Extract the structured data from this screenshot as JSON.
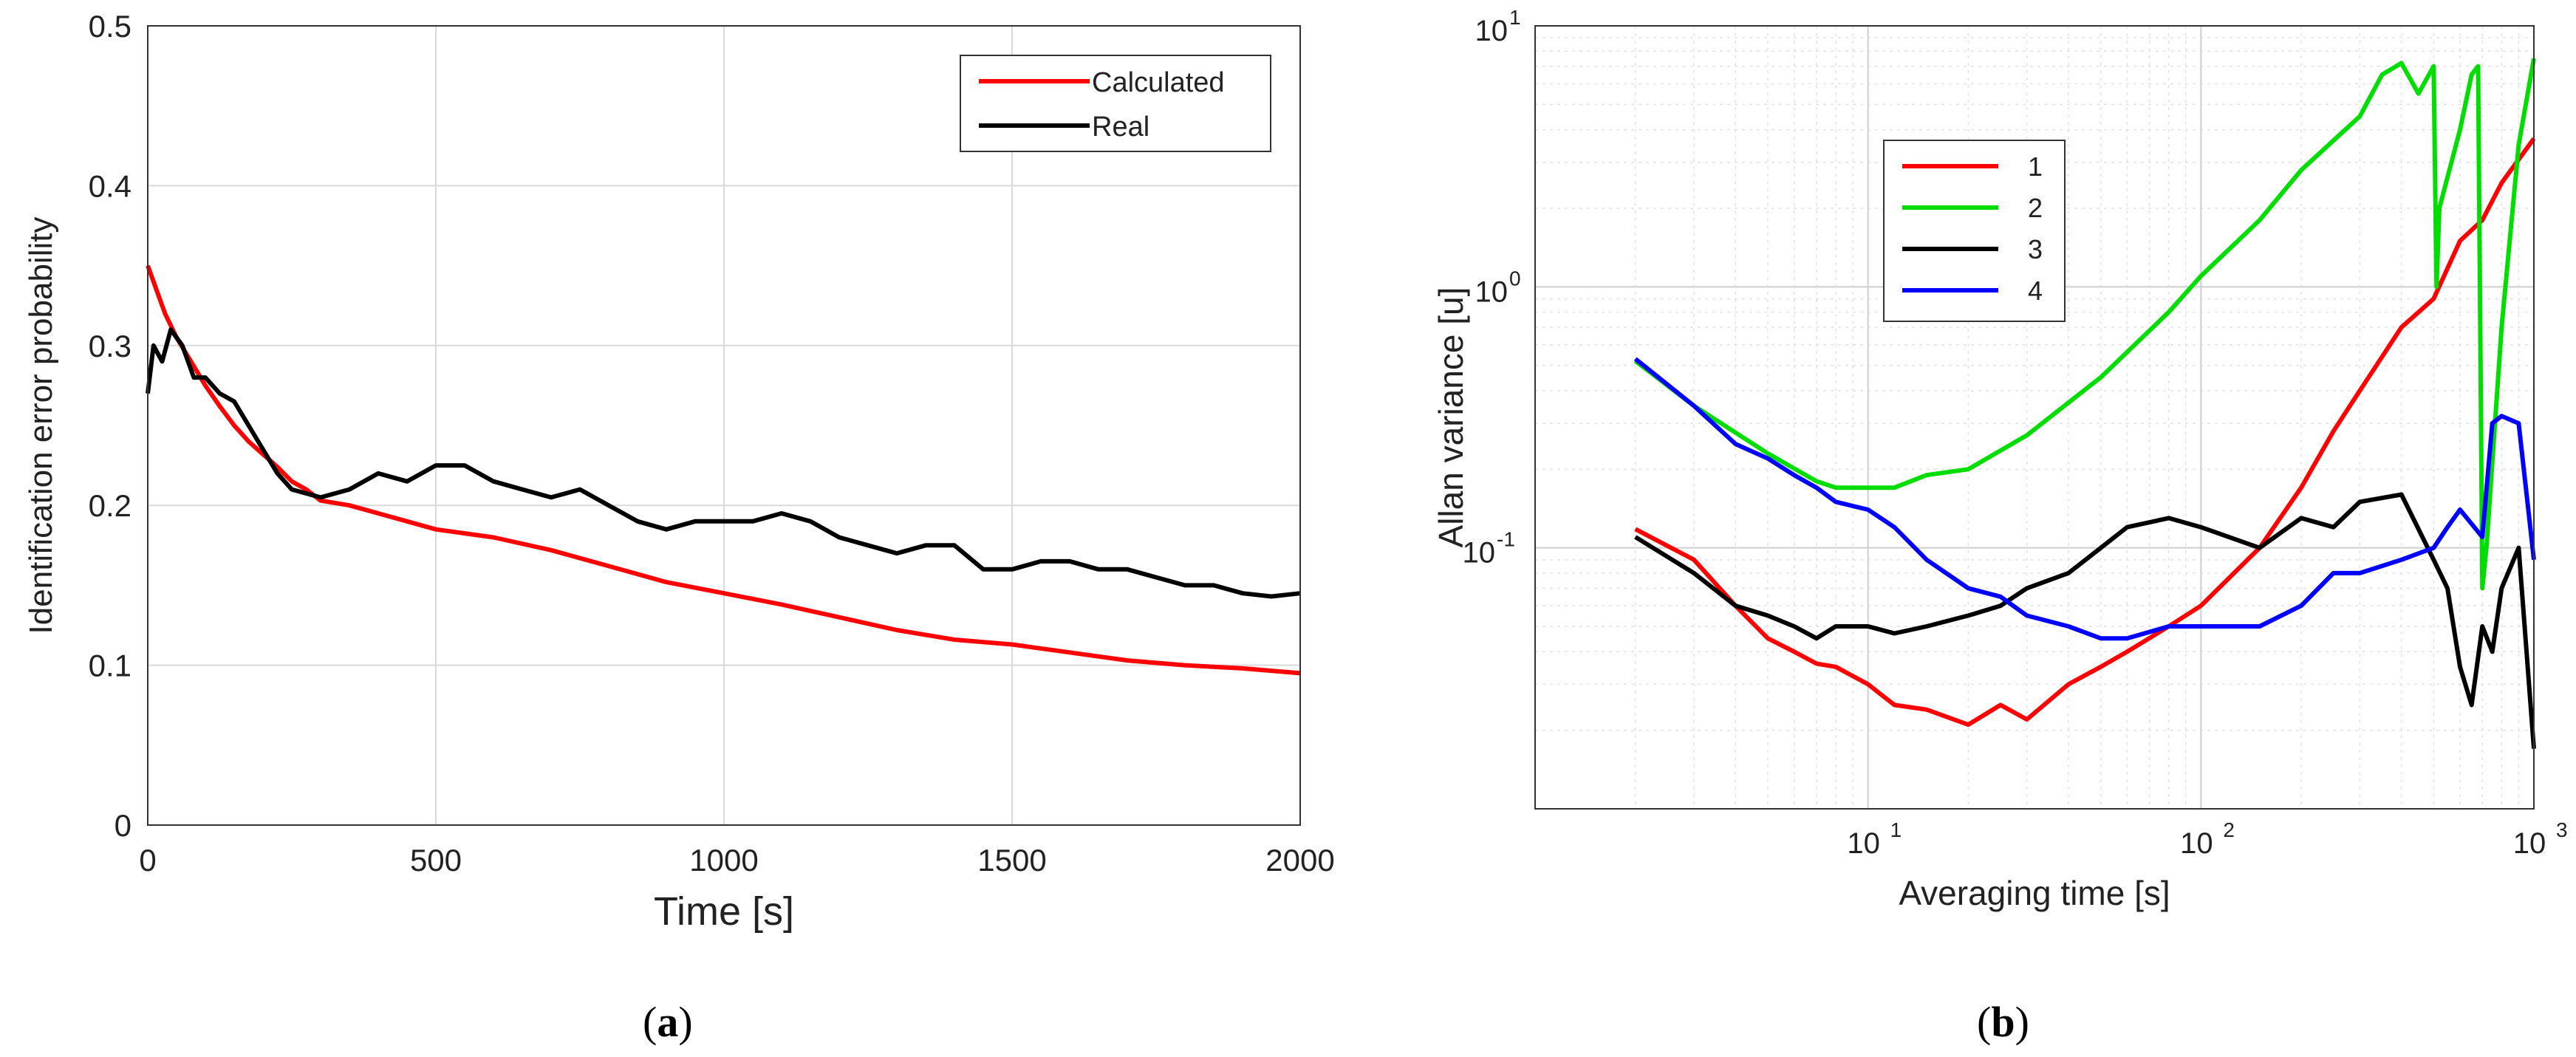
{
  "chart_data": [
    {
      "type": "line",
      "panel": "a",
      "xlabel": "Time [s]",
      "ylabel": "Identification error probability",
      "xlim": [
        0,
        2000
      ],
      "ylim": [
        0,
        0.5
      ],
      "x_ticks": [
        0,
        500,
        1000,
        1500,
        2000
      ],
      "x_tick_labels": [
        "0",
        "500",
        "1000",
        "1500",
        "2000"
      ],
      "y_ticks": [
        0,
        0.1,
        0.2,
        0.3,
        0.4,
        0.5
      ],
      "y_tick_labels": [
        "0",
        "0.1",
        "0.2",
        "0.3",
        "0.4",
        "0.5"
      ],
      "grid": true,
      "legend_position": "top-right",
      "series": [
        {
          "name": "Calculated",
          "color": "#ff0000",
          "x": [
            0,
            5,
            15,
            30,
            50,
            75,
            100,
            125,
            150,
            175,
            200,
            225,
            250,
            275,
            300,
            350,
            400,
            450,
            500,
            600,
            700,
            800,
            900,
            1000,
            1100,
            1200,
            1300,
            1400,
            1500,
            1600,
            1700,
            1800,
            1900,
            2000
          ],
          "y": [
            0.35,
            0.345,
            0.335,
            0.32,
            0.305,
            0.29,
            0.275,
            0.262,
            0.25,
            0.24,
            0.232,
            0.224,
            0.215,
            0.21,
            0.203,
            0.2,
            0.195,
            0.19,
            0.185,
            0.18,
            0.172,
            0.162,
            0.152,
            0.145,
            0.138,
            0.13,
            0.122,
            0.116,
            0.113,
            0.108,
            0.103,
            0.1,
            0.098,
            0.095
          ]
        },
        {
          "name": "Real",
          "color": "#000000",
          "x": [
            0,
            10,
            25,
            40,
            60,
            80,
            100,
            125,
            150,
            175,
            200,
            225,
            250,
            300,
            350,
            400,
            450,
            500,
            550,
            600,
            650,
            700,
            750,
            800,
            850,
            900,
            950,
            1000,
            1050,
            1100,
            1150,
            1200,
            1250,
            1300,
            1350,
            1400,
            1450,
            1500,
            1550,
            1600,
            1650,
            1700,
            1750,
            1800,
            1850,
            1900,
            1950,
            2000
          ],
          "y": [
            0.27,
            0.3,
            0.29,
            0.31,
            0.3,
            0.28,
            0.28,
            0.27,
            0.265,
            0.25,
            0.235,
            0.22,
            0.21,
            0.205,
            0.21,
            0.22,
            0.215,
            0.225,
            0.225,
            0.215,
            0.21,
            0.205,
            0.21,
            0.2,
            0.19,
            0.185,
            0.19,
            0.19,
            0.19,
            0.195,
            0.19,
            0.18,
            0.175,
            0.17,
            0.175,
            0.175,
            0.16,
            0.16,
            0.165,
            0.165,
            0.16,
            0.16,
            0.155,
            0.15,
            0.15,
            0.145,
            0.143,
            0.145
          ]
        }
      ]
    },
    {
      "type": "line",
      "panel": "b",
      "xlabel": "Averaging time [s]",
      "ylabel": "Allan variance [u]",
      "xscale": "log",
      "yscale": "log",
      "xlim": [
        1,
        1000
      ],
      "ylim": [
        0.01,
        10
      ],
      "x_ticks": [
        10,
        100,
        1000
      ],
      "x_tick_labels": [
        {
          "base": "10",
          "exp": "1"
        },
        {
          "base": "10",
          "exp": "2"
        },
        {
          "base": "10",
          "exp": "3"
        }
      ],
      "y_ticks": [
        0.1,
        1,
        10
      ],
      "y_tick_labels": [
        {
          "base": "10",
          "exp": "-1"
        },
        {
          "base": "10",
          "exp": "0"
        },
        {
          "base": "10",
          "exp": "1"
        }
      ],
      "grid": true,
      "legend_position": "top-left",
      "series": [
        {
          "name": "1",
          "color": "#ff0000",
          "x": [
            2,
            3,
            4,
            5,
            6,
            7,
            8,
            10,
            12,
            15,
            20,
            25,
            30,
            40,
            50,
            60,
            80,
            100,
            150,
            200,
            250,
            300,
            400,
            500,
            600,
            700,
            800,
            1000
          ],
          "y": [
            0.118,
            0.09,
            0.06,
            0.045,
            0.04,
            0.036,
            0.035,
            0.03,
            0.025,
            0.024,
            0.021,
            0.025,
            0.022,
            0.03,
            0.035,
            0.04,
            0.05,
            0.06,
            0.1,
            0.17,
            0.28,
            0.4,
            0.7,
            0.9,
            1.5,
            1.8,
            2.5,
            3.7
          ]
        },
        {
          "name": "2",
          "color": "#00dd00",
          "x": [
            2,
            3,
            5,
            7,
            8,
            10,
            12,
            15,
            20,
            30,
            50,
            80,
            100,
            150,
            200,
            300,
            350,
            400,
            450,
            500,
            510,
            520,
            600,
            650,
            680,
            700,
            720,
            800,
            900,
            1000
          ],
          "y": [
            0.52,
            0.35,
            0.23,
            0.18,
            0.17,
            0.17,
            0.17,
            0.19,
            0.2,
            0.27,
            0.45,
            0.8,
            1.1,
            1.8,
            2.8,
            4.5,
            6.5,
            7.2,
            5.5,
            7.0,
            1.0,
            2.0,
            4.0,
            6.5,
            7.0,
            0.07,
            0.1,
            0.7,
            3.5,
            7.5
          ]
        },
        {
          "name": "3",
          "color": "#000000",
          "x": [
            2,
            3,
            4,
            5,
            6,
            7,
            8,
            10,
            12,
            15,
            20,
            25,
            30,
            40,
            50,
            60,
            80,
            100,
            150,
            200,
            250,
            300,
            400,
            500,
            550,
            600,
            650,
            700,
            750,
            800,
            900,
            1000
          ],
          "y": [
            0.11,
            0.08,
            0.06,
            0.055,
            0.05,
            0.045,
            0.05,
            0.05,
            0.047,
            0.05,
            0.055,
            0.06,
            0.07,
            0.08,
            0.1,
            0.12,
            0.13,
            0.12,
            0.1,
            0.13,
            0.12,
            0.15,
            0.16,
            0.09,
            0.07,
            0.035,
            0.025,
            0.05,
            0.04,
            0.07,
            0.1,
            0.017
          ]
        },
        {
          "name": "4",
          "color": "#0000ff",
          "x": [
            2,
            3,
            4,
            5,
            6,
            7,
            8,
            10,
            12,
            15,
            20,
            25,
            30,
            40,
            50,
            60,
            80,
            100,
            150,
            200,
            250,
            300,
            400,
            500,
            550,
            600,
            700,
            750,
            800,
            900,
            1000
          ],
          "y": [
            0.53,
            0.35,
            0.25,
            0.22,
            0.19,
            0.17,
            0.15,
            0.14,
            0.12,
            0.09,
            0.07,
            0.065,
            0.055,
            0.05,
            0.045,
            0.045,
            0.05,
            0.05,
            0.05,
            0.06,
            0.08,
            0.08,
            0.09,
            0.1,
            0.12,
            0.14,
            0.11,
            0.3,
            0.32,
            0.3,
            0.09
          ]
        }
      ]
    }
  ],
  "panel_labels": {
    "a": "a",
    "b": "b",
    "open": "(",
    "close": ")"
  }
}
